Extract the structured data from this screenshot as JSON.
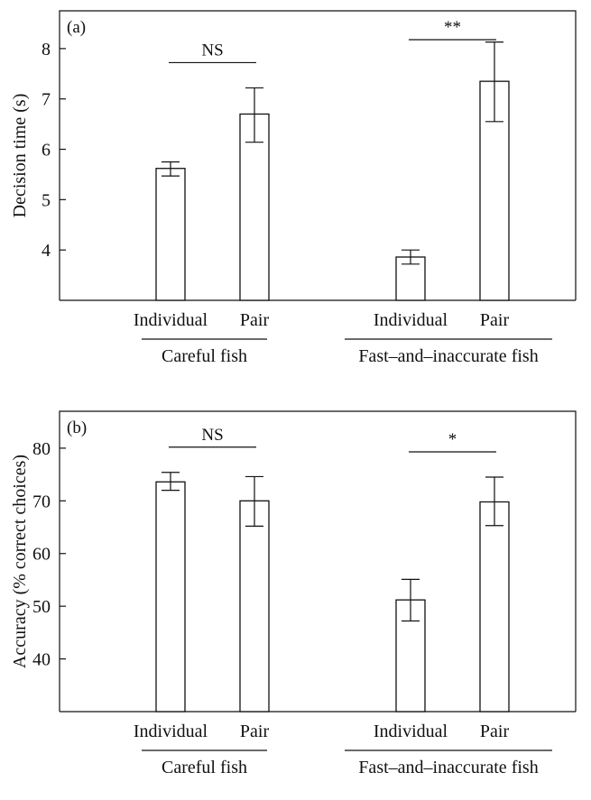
{
  "chart_data": [
    {
      "type": "bar",
      "panel_label": "(a)",
      "ylabel": "Decision time (s)",
      "ylim": [
        3.0,
        8.75
      ],
      "yticks": [
        4,
        5,
        6,
        7,
        8
      ],
      "grid": false,
      "groups": [
        {
          "name": "Careful fish",
          "categories": [
            "Individual",
            "Pair"
          ],
          "values": [
            5.62,
            6.7
          ],
          "error_low": [
            5.47,
            6.14
          ],
          "error_high": [
            5.75,
            7.22
          ],
          "significance": "NS"
        },
        {
          "name": "Fast–and–inaccurate fish",
          "categories": [
            "Individual",
            "Pair"
          ],
          "values": [
            3.86,
            7.35
          ],
          "error_low": [
            3.72,
            6.55
          ],
          "error_high": [
            4.0,
            8.13
          ],
          "significance": "**"
        }
      ]
    },
    {
      "type": "bar",
      "panel_label": "(b)",
      "ylabel": "Accuracy (% correct choices)",
      "ylim": [
        30,
        87
      ],
      "yticks": [
        40,
        50,
        60,
        70,
        80
      ],
      "grid": false,
      "groups": [
        {
          "name": "Careful fish",
          "categories": [
            "Individual",
            "Pair"
          ],
          "values": [
            73.6,
            70.0
          ],
          "error_low": [
            72.0,
            65.2
          ],
          "error_high": [
            75.4,
            74.6
          ],
          "significance": "NS"
        },
        {
          "name": "Fast–and–inaccurate fish",
          "categories": [
            "Individual",
            "Pair"
          ],
          "values": [
            51.2,
            69.8
          ],
          "error_low": [
            47.2,
            65.3
          ],
          "error_high": [
            55.1,
            74.5
          ],
          "significance": "*"
        }
      ]
    }
  ]
}
